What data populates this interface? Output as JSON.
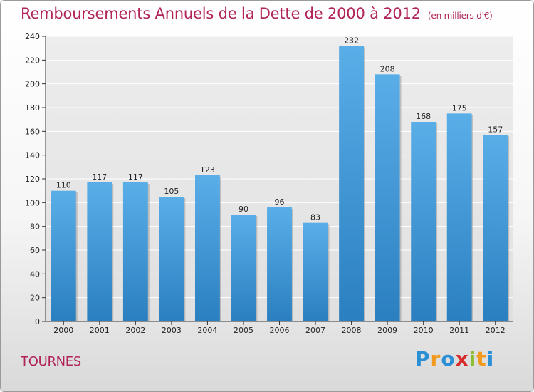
{
  "header": {
    "title": "Remboursements Annuels de la Dette de 2000 à 2012",
    "unit": "(en milliers d'€)"
  },
  "footer": {
    "town": "TOURNES",
    "logo_letters": [
      "P",
      "r",
      "o",
      "x",
      "i",
      "t",
      "i"
    ],
    "logo_colors": [
      "#2b8fd6",
      "#f29a1d",
      "#2b8fd6",
      "#d62c2c",
      "#8bbf2d",
      "#f29a1d",
      "#2b8fd6"
    ]
  },
  "chart_data": {
    "type": "bar",
    "title": "Remboursements Annuels de la Dette de 2000 à 2012",
    "categories": [
      "2000",
      "2001",
      "2002",
      "2003",
      "2004",
      "2005",
      "2006",
      "2007",
      "2008",
      "2009",
      "2010",
      "2011",
      "2012"
    ],
    "values": [
      110,
      117,
      117,
      105,
      123,
      90,
      96,
      83,
      232,
      208,
      168,
      175,
      157
    ],
    "ylim": [
      0,
      240
    ],
    "yticks": [
      0,
      20,
      40,
      60,
      80,
      100,
      120,
      140,
      160,
      180,
      200,
      220,
      240
    ],
    "grid": true,
    "bar_color_top": "#5aaee8",
    "bar_color_bottom": "#2a7fc0"
  }
}
